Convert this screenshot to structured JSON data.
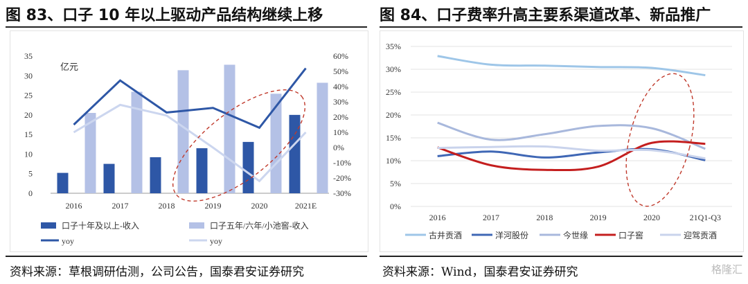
{
  "left": {
    "title": "图 83、口子 10 年以上驱动产品结构继续上移",
    "source": "资料来源：草根调研估测，公司公告，国泰君安证券研究"
  },
  "right": {
    "title": "图 84、口子费率升高主要系渠道改革、新品推广",
    "source": "资料来源：Wind，国泰君安证券研究"
  },
  "watermark": "格隆汇",
  "chart_data": [
    {
      "type": "bar",
      "unit_label": "亿元",
      "categories": [
        "2016",
        "2017",
        "2018",
        "2019",
        "2020",
        "2021E"
      ],
      "ylim": [
        0,
        35
      ],
      "y_ticks": [
        0,
        5,
        10,
        15,
        20,
        25,
        30,
        35
      ],
      "y2lim": [
        -30,
        60
      ],
      "y2_ticks": [
        "60%",
        "50%",
        "40%",
        "30%",
        "20%",
        "10%",
        "0%",
        "-10%",
        "-20%",
        "-30%"
      ],
      "series": [
        {
          "name": "口子十年及以上-收入",
          "kind": "bar",
          "axis": "left",
          "color": "#2e57a6",
          "values": [
            5.2,
            7.5,
            9.2,
            11.5,
            13.1,
            20.0
          ]
        },
        {
          "name": "口子五年/六年/小池窖-收入",
          "kind": "bar",
          "axis": "left",
          "color": "#b4c1e6",
          "values": [
            20.5,
            25.9,
            31.4,
            32.8,
            25.4,
            28.2
          ]
        },
        {
          "name": "yoy",
          "kind": "line",
          "axis": "right",
          "color": "#2e57a6",
          "values": [
            15,
            44,
            23,
            26,
            13,
            52
          ]
        },
        {
          "name": "yoy",
          "kind": "line",
          "axis": "right",
          "color": "#ccd6ef",
          "values": [
            10,
            28,
            21,
            0,
            -22,
            10
          ]
        }
      ],
      "grid": false,
      "legend_position": "bottom"
    },
    {
      "type": "line",
      "categories": [
        "2016",
        "2017",
        "2018",
        "2019",
        "2020",
        "21Q1-Q3"
      ],
      "ylim": [
        0,
        35
      ],
      "y_ticks": [
        "35%",
        "30%",
        "25%",
        "20%",
        "15%",
        "10%",
        "5%",
        "0%"
      ],
      "series": [
        {
          "name": "古井贡酒",
          "color": "#9ec6e8",
          "values": [
            32.9,
            31.0,
            30.8,
            30.5,
            30.3,
            28.7
          ]
        },
        {
          "name": "洋河股份",
          "color": "#3f67b5",
          "values": [
            11.0,
            12.0,
            10.7,
            11.8,
            12.5,
            10.1
          ]
        },
        {
          "name": "今世缘",
          "color": "#a8b8dc",
          "values": [
            18.3,
            14.6,
            15.8,
            17.6,
            17.1,
            12.6
          ]
        },
        {
          "name": "口子窖",
          "color": "#c41e1e",
          "values": [
            12.9,
            9.0,
            8.0,
            8.7,
            13.9,
            13.7
          ]
        },
        {
          "name": "迎驾贡酒",
          "color": "#c9d3ec",
          "values": [
            12.8,
            13.0,
            13.1,
            12.2,
            12.3,
            10.5
          ]
        }
      ],
      "grid": true,
      "legend_position": "bottom"
    }
  ]
}
